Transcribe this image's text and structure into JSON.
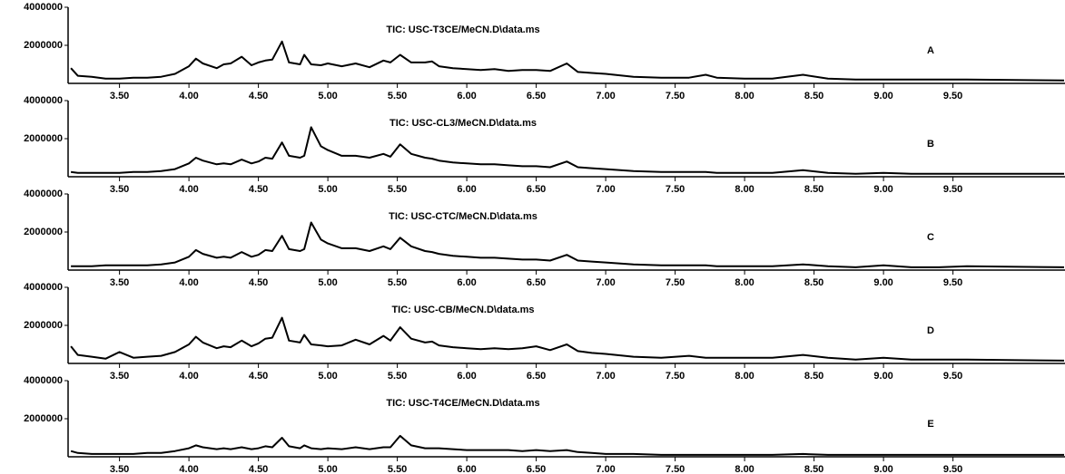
{
  "chart_data": [
    {
      "type": "line",
      "title": "TIC: USC-T3CE/MeCN.D\\data.ms",
      "annotation": "A",
      "color": "#000000",
      "xlim": [
        3.13,
        10.3
      ],
      "ylim": [
        0,
        4000000
      ],
      "yticks": [
        2000000,
        4000000
      ],
      "xticks": [
        {
          "value": 3.5,
          "label": "3.50"
        },
        {
          "value": 4,
          "label": "4.00"
        },
        {
          "value": 4.5,
          "label": "4.50"
        },
        {
          "value": 5,
          "label": "5.00"
        },
        {
          "value": 5.5,
          "label": "5.50"
        },
        {
          "value": 6,
          "label": "6.00"
        },
        {
          "value": 6.5,
          "label": "6.50"
        },
        {
          "value": 7,
          "label": "7.00"
        },
        {
          "value": 7.5,
          "label": "7.50"
        },
        {
          "value": 8,
          "label": "8.00"
        },
        {
          "value": 8.5,
          "label": "8.50"
        },
        {
          "value": 9,
          "label": "9.00"
        },
        {
          "value": 9.5,
          "label": "9.50"
        }
      ],
      "x": [
        3.15,
        3.2,
        3.3,
        3.4,
        3.5,
        3.6,
        3.7,
        3.8,
        3.9,
        4.0,
        4.05,
        4.1,
        4.2,
        4.25,
        4.3,
        4.38,
        4.45,
        4.5,
        4.55,
        4.6,
        4.67,
        4.72,
        4.8,
        4.83,
        4.88,
        4.95,
        5.0,
        5.1,
        5.2,
        5.3,
        5.4,
        5.45,
        5.52,
        5.6,
        5.7,
        5.75,
        5.8,
        5.9,
        6.0,
        6.1,
        6.2,
        6.3,
        6.4,
        6.5,
        6.6,
        6.72,
        6.8,
        6.9,
        7.0,
        7.2,
        7.4,
        7.6,
        7.72,
        7.8,
        8.0,
        8.2,
        8.42,
        8.6,
        8.8,
        9.0,
        9.2,
        9.4,
        9.6,
        10.3
      ],
      "values": [
        800000,
        400000,
        350000,
        250000,
        250000,
        300000,
        300000,
        350000,
        500000,
        900000,
        1300000,
        1050000,
        800000,
        1000000,
        1050000,
        1400000,
        950000,
        1100000,
        1200000,
        1250000,
        2200000,
        1100000,
        1000000,
        1500000,
        1000000,
        950000,
        1050000,
        900000,
        1050000,
        850000,
        1200000,
        1100000,
        1500000,
        1100000,
        1100000,
        1150000,
        900000,
        800000,
        750000,
        700000,
        750000,
        650000,
        700000,
        700000,
        650000,
        1050000,
        600000,
        550000,
        500000,
        350000,
        300000,
        300000,
        450000,
        300000,
        250000,
        250000,
        450000,
        250000,
        200000,
        200000,
        200000,
        200000,
        200000,
        150000
      ]
    },
    {
      "type": "line",
      "title": "TIC: USC-CL3/MeCN.D\\data.ms",
      "annotation": "B",
      "color": "#000000",
      "xlim": [
        3.13,
        10.3
      ],
      "ylim": [
        0,
        4000000
      ],
      "yticks": [
        2000000,
        4000000
      ],
      "xticks": [
        {
          "value": 3.5,
          "label": "3.50"
        },
        {
          "value": 4,
          "label": "4.00"
        },
        {
          "value": 4.5,
          "label": "4.50"
        },
        {
          "value": 5,
          "label": "5.00"
        },
        {
          "value": 5.5,
          "label": "5.50"
        },
        {
          "value": 6,
          "label": "6.00"
        },
        {
          "value": 6.5,
          "label": "6.50"
        },
        {
          "value": 7,
          "label": "7.00"
        },
        {
          "value": 7.5,
          "label": "7.50"
        },
        {
          "value": 8,
          "label": "8.00"
        },
        {
          "value": 8.5,
          "label": "8.50"
        },
        {
          "value": 9,
          "label": "9.00"
        },
        {
          "value": 9.5,
          "label": "9.50"
        }
      ],
      "x": [
        3.15,
        3.2,
        3.3,
        3.4,
        3.5,
        3.6,
        3.7,
        3.8,
        3.9,
        4.0,
        4.05,
        4.1,
        4.2,
        4.25,
        4.3,
        4.38,
        4.45,
        4.5,
        4.55,
        4.6,
        4.67,
        4.72,
        4.8,
        4.83,
        4.88,
        4.95,
        5.0,
        5.1,
        5.2,
        5.3,
        5.4,
        5.45,
        5.52,
        5.6,
        5.7,
        5.75,
        5.8,
        5.9,
        6.0,
        6.1,
        6.2,
        6.3,
        6.4,
        6.5,
        6.6,
        6.72,
        6.8,
        6.9,
        7.0,
        7.2,
        7.4,
        7.6,
        7.72,
        7.8,
        8.0,
        8.2,
        8.42,
        8.6,
        8.8,
        9.0,
        9.2,
        9.4,
        9.6,
        10.3
      ],
      "values": [
        250000,
        200000,
        200000,
        200000,
        200000,
        250000,
        250000,
        300000,
        400000,
        700000,
        1000000,
        850000,
        650000,
        700000,
        650000,
        900000,
        700000,
        800000,
        1000000,
        950000,
        1800000,
        1100000,
        1000000,
        1100000,
        2600000,
        1600000,
        1400000,
        1100000,
        1100000,
        1000000,
        1200000,
        1050000,
        1700000,
        1200000,
        1000000,
        950000,
        850000,
        750000,
        700000,
        650000,
        650000,
        600000,
        550000,
        550000,
        500000,
        800000,
        500000,
        450000,
        400000,
        300000,
        250000,
        250000,
        250000,
        200000,
        200000,
        200000,
        350000,
        200000,
        150000,
        200000,
        150000,
        150000,
        150000,
        150000
      ]
    },
    {
      "type": "line",
      "title": "TIC: USC-CTC/MeCN.D\\data.ms",
      "annotation": "C",
      "color": "#000000",
      "xlim": [
        3.13,
        10.3
      ],
      "ylim": [
        0,
        4000000
      ],
      "yticks": [
        2000000,
        4000000
      ],
      "xticks": [
        {
          "value": 3.5,
          "label": "3.50"
        },
        {
          "value": 4,
          "label": "4.00"
        },
        {
          "value": 4.5,
          "label": "4.50"
        },
        {
          "value": 5,
          "label": "5.00"
        },
        {
          "value": 5.5,
          "label": "5.50"
        },
        {
          "value": 6,
          "label": "6.00"
        },
        {
          "value": 6.5,
          "label": "6.50"
        },
        {
          "value": 7,
          "label": "7.00"
        },
        {
          "value": 7.5,
          "label": "7.50"
        },
        {
          "value": 8,
          "label": "8.00"
        },
        {
          "value": 8.5,
          "label": "8.50"
        },
        {
          "value": 9,
          "label": "9.00"
        },
        {
          "value": 9.5,
          "label": "9.50"
        }
      ],
      "x": [
        3.15,
        3.2,
        3.3,
        3.4,
        3.5,
        3.6,
        3.7,
        3.8,
        3.9,
        4.0,
        4.05,
        4.1,
        4.2,
        4.25,
        4.3,
        4.38,
        4.45,
        4.5,
        4.55,
        4.6,
        4.67,
        4.72,
        4.8,
        4.83,
        4.88,
        4.95,
        5.0,
        5.1,
        5.2,
        5.3,
        5.4,
        5.45,
        5.52,
        5.6,
        5.7,
        5.75,
        5.8,
        5.9,
        6.0,
        6.1,
        6.2,
        6.3,
        6.4,
        6.5,
        6.6,
        6.72,
        6.8,
        6.9,
        7.0,
        7.2,
        7.4,
        7.6,
        7.72,
        7.8,
        8.0,
        8.2,
        8.42,
        8.6,
        8.8,
        9.0,
        9.2,
        9.4,
        9.6,
        10.3
      ],
      "values": [
        200000,
        200000,
        200000,
        250000,
        250000,
        250000,
        250000,
        300000,
        400000,
        700000,
        1050000,
        850000,
        650000,
        700000,
        650000,
        950000,
        700000,
        800000,
        1050000,
        1000000,
        1800000,
        1100000,
        1000000,
        1100000,
        2500000,
        1600000,
        1400000,
        1150000,
        1150000,
        1000000,
        1250000,
        1100000,
        1700000,
        1250000,
        1000000,
        950000,
        850000,
        750000,
        700000,
        650000,
        650000,
        600000,
        550000,
        550000,
        500000,
        800000,
        500000,
        450000,
        400000,
        300000,
        250000,
        250000,
        250000,
        200000,
        200000,
        200000,
        300000,
        200000,
        150000,
        250000,
        150000,
        150000,
        200000,
        150000
      ]
    },
    {
      "type": "line",
      "title": "TIC: USC-CB/MeCN.D\\data.ms",
      "annotation": "D",
      "color": "#000000",
      "xlim": [
        3.13,
        10.3
      ],
      "ylim": [
        0,
        4000000
      ],
      "yticks": [
        2000000,
        4000000
      ],
      "xticks": [
        {
          "value": 3.5,
          "label": "3.50"
        },
        {
          "value": 4,
          "label": "4.00"
        },
        {
          "value": 4.5,
          "label": "4.50"
        },
        {
          "value": 5,
          "label": "5.00"
        },
        {
          "value": 5.5,
          "label": "5.50"
        },
        {
          "value": 6,
          "label": "6.00"
        },
        {
          "value": 6.5,
          "label": "6.50"
        },
        {
          "value": 7,
          "label": "7.00"
        },
        {
          "value": 7.5,
          "label": "7.50"
        },
        {
          "value": 8,
          "label": "8.00"
        },
        {
          "value": 8.5,
          "label": "8.50"
        },
        {
          "value": 9,
          "label": "9.00"
        },
        {
          "value": 9.5,
          "label": "9.50"
        }
      ],
      "x": [
        3.15,
        3.2,
        3.3,
        3.4,
        3.5,
        3.6,
        3.7,
        3.8,
        3.9,
        4.0,
        4.05,
        4.1,
        4.2,
        4.25,
        4.3,
        4.38,
        4.45,
        4.5,
        4.55,
        4.6,
        4.67,
        4.72,
        4.8,
        4.83,
        4.88,
        4.95,
        5.0,
        5.1,
        5.2,
        5.3,
        5.4,
        5.45,
        5.52,
        5.6,
        5.7,
        5.75,
        5.8,
        5.9,
        6.0,
        6.1,
        6.2,
        6.3,
        6.4,
        6.5,
        6.6,
        6.72,
        6.8,
        6.9,
        7.0,
        7.2,
        7.4,
        7.6,
        7.72,
        7.8,
        8.0,
        8.2,
        8.42,
        8.6,
        8.8,
        9.0,
        9.2,
        9.4,
        9.6,
        10.3
      ],
      "values": [
        900000,
        450000,
        350000,
        250000,
        600000,
        300000,
        350000,
        400000,
        600000,
        1000000,
        1400000,
        1100000,
        800000,
        900000,
        850000,
        1200000,
        900000,
        1050000,
        1300000,
        1350000,
        2400000,
        1200000,
        1100000,
        1500000,
        1000000,
        950000,
        900000,
        950000,
        1250000,
        1000000,
        1450000,
        1200000,
        1900000,
        1300000,
        1100000,
        1150000,
        950000,
        850000,
        800000,
        750000,
        800000,
        750000,
        800000,
        900000,
        700000,
        1000000,
        650000,
        550000,
        500000,
        350000,
        300000,
        400000,
        300000,
        300000,
        300000,
        300000,
        450000,
        300000,
        200000,
        300000,
        200000,
        200000,
        200000,
        150000
      ]
    },
    {
      "type": "line",
      "title": "TIC: USC-T4CE/MeCN.D\\data.ms",
      "annotation": "E",
      "color": "#000000",
      "xlim": [
        3.13,
        10.3
      ],
      "ylim": [
        0,
        4000000
      ],
      "yticks": [
        2000000,
        4000000
      ],
      "xticks": [
        {
          "value": 3.5,
          "label": "3.50"
        },
        {
          "value": 4,
          "label": "4.00"
        },
        {
          "value": 4.5,
          "label": "4.50"
        },
        {
          "value": 5,
          "label": "5.00"
        },
        {
          "value": 5.5,
          "label": "5.50"
        },
        {
          "value": 6,
          "label": "6.00"
        },
        {
          "value": 6.5,
          "label": "6.50"
        },
        {
          "value": 7,
          "label": "7.00"
        },
        {
          "value": 7.5,
          "label": "7.50"
        },
        {
          "value": 8,
          "label": "8.00"
        },
        {
          "value": 8.5,
          "label": "8.50"
        },
        {
          "value": 9,
          "label": "9.00"
        },
        {
          "value": 9.5,
          "label": "9.50"
        }
      ],
      "x": [
        3.15,
        3.2,
        3.3,
        3.4,
        3.5,
        3.6,
        3.7,
        3.8,
        3.9,
        4.0,
        4.05,
        4.1,
        4.2,
        4.25,
        4.3,
        4.38,
        4.45,
        4.5,
        4.55,
        4.6,
        4.67,
        4.72,
        4.8,
        4.83,
        4.88,
        4.95,
        5.0,
        5.1,
        5.2,
        5.3,
        5.4,
        5.45,
        5.52,
        5.6,
        5.7,
        5.75,
        5.8,
        5.9,
        6.0,
        6.1,
        6.2,
        6.3,
        6.4,
        6.5,
        6.6,
        6.72,
        6.8,
        6.9,
        7.0,
        7.2,
        7.4,
        7.6,
        7.72,
        7.8,
        8.0,
        8.2,
        8.42,
        8.6,
        8.8,
        9.0,
        9.2,
        9.4,
        9.6,
        10.3
      ],
      "values": [
        300000,
        200000,
        150000,
        150000,
        150000,
        150000,
        200000,
        200000,
        300000,
        450000,
        600000,
        500000,
        400000,
        450000,
        400000,
        500000,
        400000,
        450000,
        550000,
        500000,
        1000000,
        550000,
        450000,
        600000,
        450000,
        400000,
        450000,
        400000,
        500000,
        400000,
        500000,
        500000,
        1100000,
        600000,
        450000,
        450000,
        450000,
        400000,
        350000,
        350000,
        350000,
        350000,
        300000,
        350000,
        300000,
        350000,
        250000,
        200000,
        150000,
        150000,
        100000,
        100000,
        100000,
        100000,
        100000,
        100000,
        150000,
        100000,
        100000,
        100000,
        100000,
        100000,
        100000,
        100000
      ]
    }
  ]
}
